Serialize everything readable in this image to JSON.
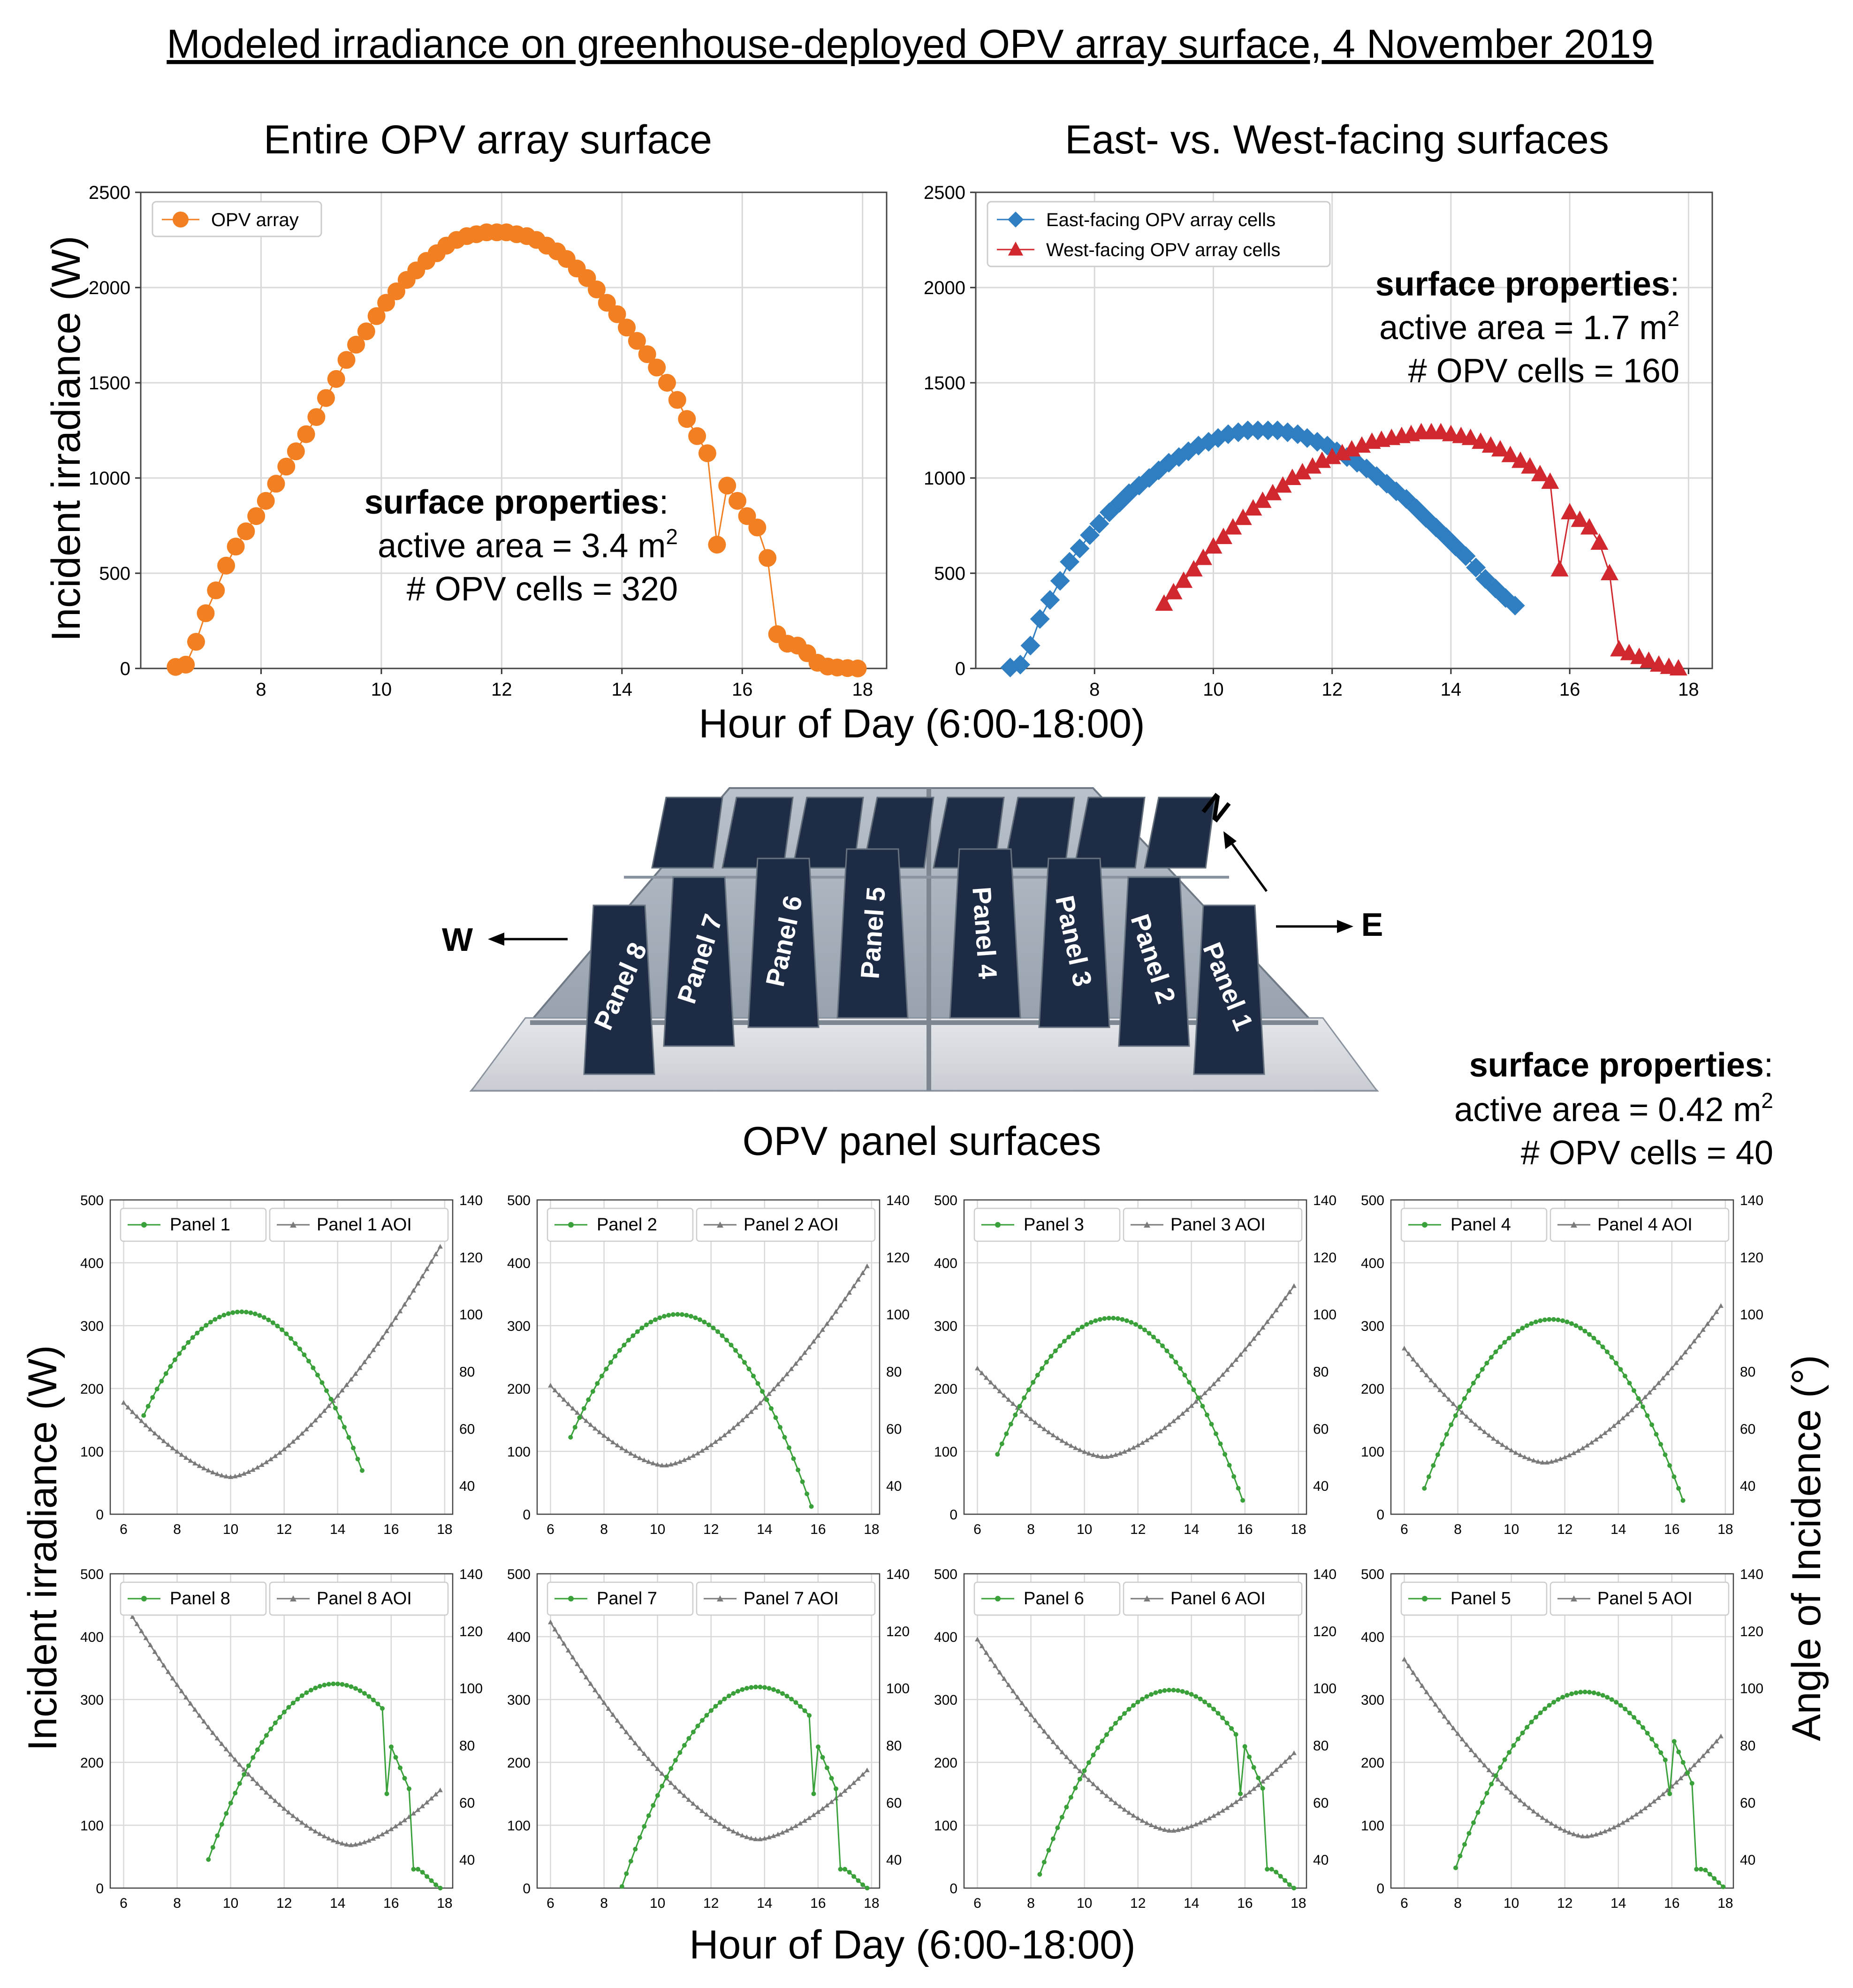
{
  "title": "Modeled irradiance on greenhouse-deployed OPV array surface, 4 November 2019",
  "section_titles": {
    "entire": "Entire OPV array surface",
    "eastwest": "East- vs. West-facing surfaces",
    "panels": "OPV panel surfaces"
  },
  "axis_labels": {
    "irradiance": "Incident irradiance (W)",
    "hour": "Hour of Day (6:00-18:00)",
    "aoi": "Angle of Incidence (°)"
  },
  "props": {
    "heading": "surface properties",
    "colon": ":",
    "entire": {
      "area": "active area = 3.4 m",
      "sup": "2",
      "cells": "# OPV cells = 320"
    },
    "eastwest": {
      "area": "active area = 1.7 m",
      "sup": "2",
      "cells": "# OPV cells = 160"
    },
    "panel": {
      "area": "active area = 0.42 m",
      "sup": "2",
      "cells": "# OPV cells = 40"
    }
  },
  "diagram": {
    "west": "W",
    "east": "E",
    "north": "N",
    "panels": [
      "Panel 1",
      "Panel 2",
      "Panel 3",
      "Panel 4",
      "Panel 5",
      "Panel 6",
      "Panel 7",
      "Panel 8"
    ]
  },
  "colors": {
    "orange": "#f28022",
    "blue": "#2f7ec1",
    "red": "#d0282e",
    "green": "#3aa13a",
    "gray": "#7a7a7a",
    "grid": "#d9d9d9"
  },
  "chart_data": [
    {
      "id": "entire",
      "type": "line",
      "title": "Entire OPV array surface",
      "xlabel": "Hour of Day (6:00-18:00)",
      "ylabel": "Incident irradiance (W)",
      "xlim": [
        6.0,
        18.4
      ],
      "ylim": [
        0,
        2500
      ],
      "xticks": [
        8,
        10,
        12,
        14,
        16,
        18
      ],
      "yticks": [
        0,
        500,
        1000,
        1500,
        2000,
        2500
      ],
      "series": [
        {
          "name": "OPV array",
          "color": "#f28022",
          "marker": "circle",
          "x": [
            6.58,
            6.75,
            6.92,
            7.08,
            7.25,
            7.42,
            7.58,
            7.75,
            7.92,
            8.08,
            8.25,
            8.42,
            8.58,
            8.75,
            8.92,
            9.08,
            9.25,
            9.42,
            9.58,
            9.75,
            9.92,
            10.08,
            10.25,
            10.42,
            10.58,
            10.75,
            10.92,
            11.08,
            11.25,
            11.42,
            11.58,
            11.75,
            11.92,
            12.08,
            12.25,
            12.42,
            12.58,
            12.75,
            12.92,
            13.08,
            13.25,
            13.42,
            13.58,
            13.75,
            13.92,
            14.08,
            14.25,
            14.42,
            14.58,
            14.75,
            14.92,
            15.08,
            15.25,
            15.42,
            15.58,
            15.75,
            15.92,
            16.08,
            16.25,
            16.42,
            16.58,
            16.75,
            16.92,
            17.08,
            17.25,
            17.42,
            17.58,
            17.75,
            17.92
          ],
          "y": [
            8,
            20,
            140,
            290,
            410,
            540,
            640,
            720,
            800,
            880,
            970,
            1060,
            1140,
            1230,
            1320,
            1420,
            1520,
            1620,
            1700,
            1770,
            1850,
            1920,
            1980,
            2040,
            2090,
            2140,
            2180,
            2220,
            2250,
            2270,
            2280,
            2290,
            2290,
            2290,
            2280,
            2270,
            2250,
            2220,
            2190,
            2150,
            2100,
            2050,
            1990,
            1920,
            1860,
            1790,
            1720,
            1650,
            1580,
            1500,
            1410,
            1310,
            1220,
            1130,
            650,
            960,
            880,
            800,
            740,
            580,
            180,
            130,
            120,
            80,
            30,
            10,
            5,
            2,
            0
          ]
        }
      ]
    },
    {
      "id": "eastwest",
      "type": "line",
      "title": "East- vs. West-facing surfaces",
      "xlabel": "Hour of Day (6:00-18:00)",
      "ylabel": "Incident irradiance (W)",
      "xlim": [
        6.0,
        18.4
      ],
      "ylim": [
        0,
        2500
      ],
      "xticks": [
        8,
        10,
        12,
        14,
        16,
        18
      ],
      "yticks": [
        0,
        500,
        1000,
        1500,
        2000,
        2500
      ],
      "series": [
        {
          "name": "East-facing OPV array cells",
          "color": "#2f7ec1",
          "marker": "diamond",
          "x": [
            6.58,
            6.75,
            6.92,
            7.08,
            7.25,
            7.42,
            7.58,
            7.75,
            7.92,
            8.08,
            8.25,
            8.42,
            8.58,
            8.75,
            8.92,
            9.08,
            9.25,
            9.42,
            9.58,
            9.75,
            9.92,
            10.08,
            10.25,
            10.42,
            10.58,
            10.75,
            10.92,
            11.08,
            11.25,
            11.42,
            11.58,
            11.75,
            11.92,
            12.08,
            12.25,
            12.42,
            12.58,
            12.75,
            12.92,
            13.08,
            13.25,
            13.42,
            13.58,
            13.75,
            13.92,
            14.08,
            14.25,
            14.42,
            14.58,
            14.75,
            14.92,
            15.08
          ],
          "y": [
            5,
            20,
            120,
            260,
            360,
            460,
            560,
            630,
            700,
            760,
            820,
            870,
            920,
            960,
            1000,
            1040,
            1080,
            1110,
            1140,
            1170,
            1190,
            1210,
            1230,
            1240,
            1250,
            1250,
            1250,
            1250,
            1240,
            1230,
            1210,
            1190,
            1170,
            1140,
            1110,
            1080,
            1050,
            1010,
            970,
            930,
            890,
            840,
            790,
            740,
            690,
            640,
            590,
            530,
            470,
            420,
            370,
            330
          ]
        },
        {
          "name": "West-facing OPV array cells",
          "color": "#d0282e",
          "marker": "triangle",
          "x": [
            9.17,
            9.33,
            9.5,
            9.67,
            9.83,
            10.0,
            10.17,
            10.33,
            10.5,
            10.67,
            10.83,
            11.0,
            11.17,
            11.33,
            11.5,
            11.67,
            11.83,
            12.0,
            12.17,
            12.33,
            12.5,
            12.67,
            12.83,
            13.0,
            13.17,
            13.33,
            13.5,
            13.67,
            13.83,
            14.0,
            14.17,
            14.33,
            14.5,
            14.67,
            14.83,
            15.0,
            15.17,
            15.33,
            15.5,
            15.67,
            15.83,
            16.0,
            16.17,
            16.33,
            16.5,
            16.67,
            16.83,
            17.0,
            17.17,
            17.33,
            17.5,
            17.67,
            17.83
          ],
          "y": [
            340,
            400,
            460,
            520,
            580,
            640,
            690,
            740,
            790,
            840,
            880,
            920,
            960,
            1000,
            1030,
            1060,
            1090,
            1110,
            1130,
            1150,
            1170,
            1190,
            1200,
            1210,
            1220,
            1230,
            1240,
            1240,
            1240,
            1230,
            1220,
            1210,
            1190,
            1170,
            1150,
            1120,
            1090,
            1060,
            1020,
            980,
            520,
            820,
            780,
            740,
            660,
            500,
            100,
            80,
            60,
            40,
            20,
            8,
            0
          ]
        }
      ]
    },
    {
      "id": "p1",
      "type": "line",
      "panel": "Panel 1",
      "aoi_name": "Panel 1 AOI",
      "xlim": [
        5.5,
        18.3
      ],
      "ylim": [
        0,
        500
      ],
      "y2lim": [
        30,
        140
      ],
      "green": {
        "start": 6.75,
        "end": 15.08,
        "peak": 10.4,
        "max": 322,
        "drop": null
      },
      "aoi": {
        "start": 6.0,
        "end": 17.92,
        "min_x": 10.0,
        "min": 43,
        "left": 69,
        "right": 125
      }
    },
    {
      "id": "p2",
      "type": "line",
      "panel": "Panel 2",
      "aoi_name": "Panel 2 AOI",
      "xlim": [
        5.5,
        18.3
      ],
      "ylim": [
        0,
        500
      ],
      "y2lim": [
        30,
        140
      ],
      "green": {
        "start": 6.75,
        "end": 15.75,
        "peak": 10.75,
        "max": 318,
        "drop": null
      },
      "aoi": {
        "start": 6.0,
        "end": 17.92,
        "min_x": 10.25,
        "min": 47,
        "left": 75,
        "right": 118
      }
    },
    {
      "id": "p3",
      "type": "line",
      "panel": "Panel 3",
      "aoi_name": "Panel 3 AOI",
      "xlim": [
        5.5,
        18.3
      ],
      "ylim": [
        0,
        500
      ],
      "y2lim": [
        30,
        140
      ],
      "green": {
        "start": 6.75,
        "end": 16.0,
        "peak": 11.0,
        "max": 312,
        "drop": null
      },
      "aoi": {
        "start": 6.0,
        "end": 17.92,
        "min_x": 10.75,
        "min": 50,
        "left": 81,
        "right": 111
      }
    },
    {
      "id": "p4",
      "type": "line",
      "panel": "Panel 4",
      "aoi_name": "Panel 4 AOI",
      "xlim": [
        5.5,
        18.3
      ],
      "ylim": [
        0,
        500
      ],
      "y2lim": [
        30,
        140
      ],
      "green": {
        "start": 6.75,
        "end": 16.5,
        "peak": 11.5,
        "max": 310,
        "drop": null
      },
      "aoi": {
        "start": 6.0,
        "end": 17.92,
        "min_x": 11.25,
        "min": 48,
        "left": 88,
        "right": 104
      }
    },
    {
      "id": "p8",
      "type": "line",
      "panel": "Panel 8",
      "aoi_name": "Panel 8 AOI",
      "xlim": [
        5.5,
        18.3
      ],
      "ylim": [
        0,
        500
      ],
      "y2lim": [
        30,
        140
      ],
      "green": {
        "start": 9.17,
        "end": 17.92,
        "peak": 13.9,
        "max": 325,
        "drop": 15.75
      },
      "aoi": {
        "start": 6.0,
        "end": 17.92,
        "min_x": 14.5,
        "min": 45,
        "left": 130,
        "right": 65
      }
    },
    {
      "id": "p7",
      "type": "line",
      "panel": "Panel 7",
      "aoi_name": "Panel 7 AOI",
      "xlim": [
        5.5,
        18.3
      ],
      "ylim": [
        0,
        500
      ],
      "y2lim": [
        30,
        140
      ],
      "green": {
        "start": 8.67,
        "end": 17.92,
        "peak": 13.75,
        "max": 320,
        "drop": 15.75
      },
      "aoi": {
        "start": 6.0,
        "end": 17.92,
        "min_x": 13.75,
        "min": 47,
        "left": 123,
        "right": 72
      }
    },
    {
      "id": "p6",
      "type": "line",
      "panel": "Panel 6",
      "aoi_name": "Panel 6 AOI",
      "xlim": [
        5.5,
        18.3
      ],
      "ylim": [
        0,
        500
      ],
      "y2lim": [
        30,
        140
      ],
      "green": {
        "start": 8.33,
        "end": 17.92,
        "peak": 13.25,
        "max": 315,
        "drop": 15.75
      },
      "aoi": {
        "start": 6.0,
        "end": 17.92,
        "min_x": 13.25,
        "min": 50,
        "left": 117,
        "right": 78
      }
    },
    {
      "id": "p5",
      "type": "line",
      "panel": "Panel 5",
      "aoi_name": "Panel 5 AOI",
      "xlim": [
        5.5,
        18.3
      ],
      "ylim": [
        0,
        500
      ],
      "y2lim": [
        30,
        140
      ],
      "green": {
        "start": 7.92,
        "end": 17.92,
        "peak": 12.75,
        "max": 312,
        "drop": 15.92
      },
      "aoi": {
        "start": 6.0,
        "end": 17.92,
        "min_x": 12.75,
        "min": 48,
        "left": 110,
        "right": 84
      }
    }
  ]
}
